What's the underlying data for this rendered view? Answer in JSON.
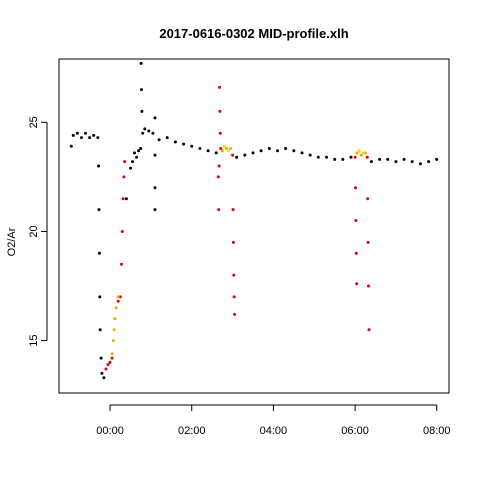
{
  "chart_data": {
    "type": "scatter",
    "title": "2017-0616-0302 MID-profile.xlh",
    "xlabel": "",
    "ylabel": "O2/Ar",
    "x_unit": "hours (HH:MM)",
    "xlim": [
      -1.25,
      8.3
    ],
    "ylim": [
      12.6,
      27.9
    ],
    "x_ticks": [
      0,
      2,
      4,
      6,
      8
    ],
    "x_tick_labels": [
      "00:00",
      "02:00",
      "04:00",
      "06:00",
      "08:00"
    ],
    "y_ticks": [
      15,
      20,
      25
    ],
    "y_tick_labels": [
      "15",
      "20",
      "25"
    ],
    "grid": false,
    "legend": "none",
    "colors": {
      "black": "#000000",
      "red": "#e00000",
      "orange": "#f5a500",
      "yellow": "#f5e000"
    },
    "series": [
      {
        "color": "black",
        "points": [
          [
            -0.95,
            23.9
          ],
          [
            -0.9,
            24.4
          ],
          [
            -0.8,
            24.5
          ],
          [
            -0.7,
            24.3
          ],
          [
            -0.6,
            24.5
          ],
          [
            -0.5,
            24.3
          ],
          [
            -0.4,
            24.4
          ],
          [
            -0.3,
            24.3
          ],
          [
            -0.28,
            23.0
          ],
          [
            -0.27,
            21.0
          ],
          [
            -0.26,
            19.0
          ],
          [
            -0.25,
            17.0
          ],
          [
            -0.24,
            15.5
          ],
          [
            -0.22,
            14.2
          ],
          [
            -0.2,
            13.5
          ],
          [
            -0.15,
            13.3
          ],
          [
            0.4,
            21.5
          ],
          [
            0.5,
            22.9
          ],
          [
            0.55,
            23.2
          ],
          [
            0.6,
            23.6
          ],
          [
            0.65,
            23.4
          ],
          [
            0.7,
            23.7
          ],
          [
            0.75,
            23.8
          ],
          [
            0.76,
            27.7
          ],
          [
            0.77,
            26.5
          ],
          [
            0.78,
            25.5
          ],
          [
            0.8,
            24.5
          ],
          [
            0.85,
            24.7
          ],
          [
            0.95,
            24.6
          ],
          [
            1.05,
            24.5
          ],
          [
            1.1,
            25.2
          ],
          [
            1.1,
            23.5
          ],
          [
            1.1,
            22.0
          ],
          [
            1.1,
            21.0
          ],
          [
            1.2,
            24.2
          ],
          [
            1.4,
            24.3
          ],
          [
            1.6,
            24.1
          ],
          [
            1.8,
            24.0
          ],
          [
            2.0,
            23.9
          ],
          [
            2.2,
            23.8
          ],
          [
            2.4,
            23.7
          ],
          [
            2.6,
            23.6
          ],
          [
            3.1,
            23.4
          ],
          [
            3.3,
            23.5
          ],
          [
            3.5,
            23.6
          ],
          [
            3.7,
            23.7
          ],
          [
            3.9,
            23.8
          ],
          [
            4.1,
            23.7
          ],
          [
            4.3,
            23.8
          ],
          [
            4.5,
            23.7
          ],
          [
            4.7,
            23.6
          ],
          [
            4.9,
            23.5
          ],
          [
            5.1,
            23.4
          ],
          [
            5.3,
            23.4
          ],
          [
            5.5,
            23.3
          ],
          [
            5.7,
            23.3
          ],
          [
            5.9,
            23.4
          ],
          [
            6.4,
            23.2
          ],
          [
            6.6,
            23.3
          ],
          [
            6.8,
            23.3
          ],
          [
            7.0,
            23.2
          ],
          [
            7.2,
            23.3
          ],
          [
            7.4,
            23.2
          ],
          [
            7.6,
            23.1
          ],
          [
            7.8,
            23.2
          ],
          [
            8.0,
            23.3
          ]
        ]
      },
      {
        "color": "red",
        "points": [
          [
            -0.1,
            13.7
          ],
          [
            -0.05,
            13.9
          ],
          [
            0.0,
            14.0
          ],
          [
            0.05,
            14.2
          ],
          [
            0.2,
            16.8
          ],
          [
            0.25,
            17.0
          ],
          [
            0.28,
            18.5
          ],
          [
            0.3,
            20.0
          ],
          [
            0.32,
            21.5
          ],
          [
            0.34,
            22.5
          ],
          [
            0.36,
            23.2
          ],
          [
            2.65,
            22.5
          ],
          [
            2.66,
            21.0
          ],
          [
            2.67,
            23.0
          ],
          [
            2.68,
            26.6
          ],
          [
            2.69,
            25.5
          ],
          [
            2.7,
            24.5
          ],
          [
            2.71,
            23.8
          ],
          [
            3.0,
            23.5
          ],
          [
            3.01,
            21.0
          ],
          [
            3.02,
            19.5
          ],
          [
            3.03,
            18.0
          ],
          [
            3.04,
            17.0
          ],
          [
            3.05,
            16.2
          ],
          [
            6.0,
            23.4
          ],
          [
            6.01,
            22.0
          ],
          [
            6.02,
            20.5
          ],
          [
            6.03,
            19.0
          ],
          [
            6.04,
            17.6
          ],
          [
            6.3,
            23.4
          ],
          [
            6.31,
            21.5
          ],
          [
            6.32,
            19.5
          ],
          [
            6.33,
            17.5
          ],
          [
            6.34,
            15.5
          ]
        ]
      },
      {
        "color": "orange",
        "points": [
          [
            0.05,
            14.4
          ],
          [
            0.08,
            15.0
          ],
          [
            0.1,
            15.5
          ],
          [
            0.12,
            16.0
          ],
          [
            0.15,
            16.5
          ],
          [
            0.2,
            17.0
          ],
          [
            2.75,
            23.7
          ],
          [
            2.85,
            23.8
          ],
          [
            2.95,
            23.8
          ],
          [
            6.05,
            23.6
          ],
          [
            6.15,
            23.5
          ],
          [
            6.25,
            23.6
          ]
        ]
      },
      {
        "color": "yellow",
        "points": [
          [
            2.8,
            23.9
          ],
          [
            2.9,
            23.7
          ],
          [
            6.1,
            23.7
          ],
          [
            6.2,
            23.6
          ]
        ]
      }
    ]
  }
}
